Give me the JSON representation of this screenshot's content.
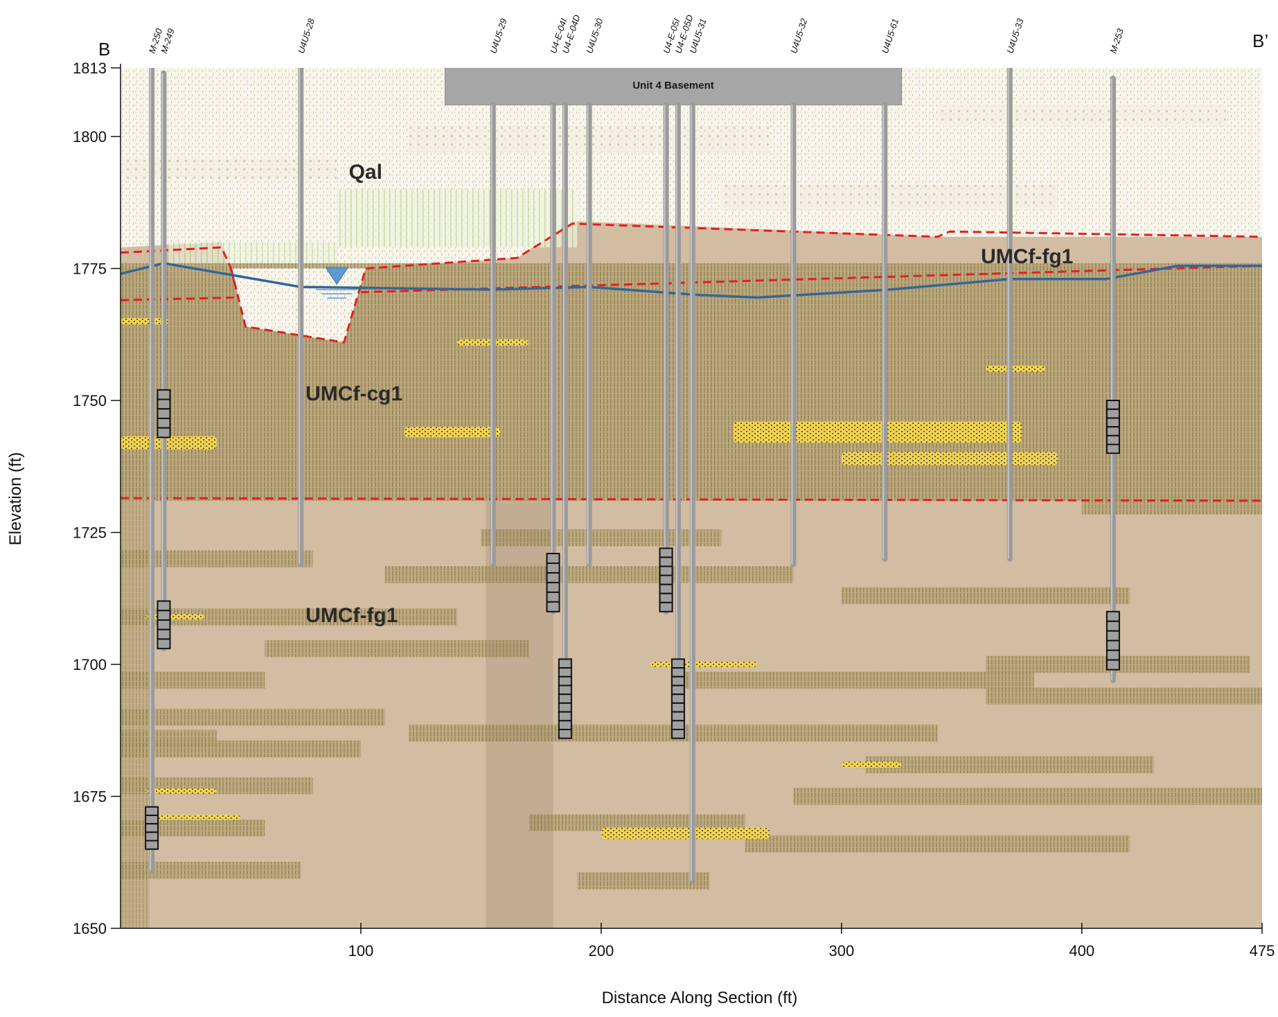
{
  "section": {
    "start_label": "B",
    "end_label": "B’"
  },
  "axes": {
    "x_title": "Distance Along Section (ft)",
    "y_title": "Elevation (ft)",
    "x_ticks": [
      {
        "value": 100,
        "label": "100"
      },
      {
        "value": 200,
        "label": "200"
      },
      {
        "value": 300,
        "label": "300"
      },
      {
        "value": 400,
        "label": "400"
      },
      {
        "value": 475,
        "label": "475"
      }
    ],
    "y_ticks": [
      {
        "value": 1813,
        "label": "1813"
      },
      {
        "value": 1800,
        "label": "1800"
      },
      {
        "value": 1775,
        "label": "1775"
      },
      {
        "value": 1750,
        "label": "1750"
      },
      {
        "value": 1725,
        "label": "1725"
      },
      {
        "value": 1700,
        "label": "1700"
      },
      {
        "value": 1675,
        "label": "1675"
      },
      {
        "value": 1650,
        "label": "1650"
      }
    ],
    "xlim": [
      0,
      475
    ],
    "ylim": [
      1650,
      1813
    ]
  },
  "structure": {
    "label": "Unit 4 Basement",
    "x_start": 135,
    "x_end": 325,
    "bottom_elevation": 1806
  },
  "units": [
    {
      "label": "Qal",
      "x": 95,
      "elev": 1792,
      "size": 30
    },
    {
      "label": "UMCf-fg1",
      "x": 358,
      "elev": 1776,
      "size": 30
    },
    {
      "label": "UMCf-cg1",
      "x": 77,
      "elev": 1750,
      "size": 30
    },
    {
      "label": "UMCf-fg1",
      "x": 77,
      "elev": 1708,
      "size": 30
    }
  ],
  "wells": [
    {
      "name": "M-250",
      "x": 13,
      "top": 1813,
      "bottom": 1661,
      "screens": [
        {
          "top": 1673,
          "bottom": 1665
        }
      ]
    },
    {
      "name": "M-249",
      "x": 18,
      "top": 1812,
      "bottom": 1703,
      "screens": [
        {
          "top": 1752,
          "bottom": 1743
        },
        {
          "top": 1712,
          "bottom": 1703
        }
      ]
    },
    {
      "name": "U4U5-28",
      "x": 75,
      "top": 1813,
      "bottom": 1719,
      "screens": []
    },
    {
      "name": "U4U5-29",
      "x": 155,
      "top": 1806,
      "bottom": 1719,
      "screens": []
    },
    {
      "name": "U4-E-04I",
      "x": 180,
      "top": 1806,
      "bottom": 1710,
      "screens": [
        {
          "top": 1721,
          "bottom": 1710
        }
      ]
    },
    {
      "name": "U4-E-04D",
      "x": 185,
      "top": 1806,
      "bottom": 1690,
      "screens": [
        {
          "top": 1701,
          "bottom": 1686
        }
      ]
    },
    {
      "name": "U4U5-30",
      "x": 195,
      "top": 1806,
      "bottom": 1719,
      "screens": []
    },
    {
      "name": "U4-E-05I",
      "x": 227,
      "top": 1806,
      "bottom": 1710,
      "screens": [
        {
          "top": 1722,
          "bottom": 1710
        }
      ]
    },
    {
      "name": "U4-E-05D",
      "x": 232,
      "top": 1806,
      "bottom": 1690,
      "screens": [
        {
          "top": 1701,
          "bottom": 1686
        }
      ]
    },
    {
      "name": "U4U5-31",
      "x": 238,
      "top": 1806,
      "bottom": 1659,
      "screens": []
    },
    {
      "name": "U4U5-32",
      "x": 280,
      "top": 1806,
      "bottom": 1719,
      "screens": []
    },
    {
      "name": "U4U5-61",
      "x": 318,
      "top": 1806,
      "bottom": 1720,
      "screens": []
    },
    {
      "name": "U4U5-33",
      "x": 370,
      "top": 1813,
      "bottom": 1720,
      "screens": []
    },
    {
      "name": "M-253",
      "x": 413,
      "top": 1811,
      "bottom": 1697,
      "screens": [
        {
          "top": 1750,
          "bottom": 1740
        },
        {
          "top": 1710,
          "bottom": 1699
        }
      ]
    }
  ],
  "water_table": [
    [
      0,
      1774
    ],
    [
      18,
      1776
    ],
    [
      75,
      1771.5
    ],
    [
      155,
      1771
    ],
    [
      195,
      1771.5
    ],
    [
      240,
      1770
    ],
    [
      265,
      1769.5
    ],
    [
      320,
      1771
    ],
    [
      370,
      1773
    ],
    [
      410,
      1773
    ],
    [
      440,
      1775.5
    ],
    [
      475,
      1775.5
    ]
  ],
  "contact_lines": [
    [
      [
        0,
        1778
      ],
      [
        42,
        1779
      ],
      [
        46,
        1775
      ],
      [
        48,
        1771
      ]
    ],
    [
      [
        0,
        1769
      ],
      [
        49,
        1769.5
      ]
    ],
    [
      [
        46,
        1775
      ],
      [
        52,
        1764
      ],
      [
        93,
        1761
      ],
      [
        102,
        1775
      ],
      [
        165,
        1777
      ],
      [
        188,
        1783.5
      ],
      [
        340,
        1781
      ],
      [
        345,
        1782
      ],
      [
        475,
        1781
      ]
    ],
    [
      [
        100,
        1770.5
      ],
      [
        475,
        1775.5
      ]
    ],
    [
      [
        0,
        1731.5
      ],
      [
        475,
        1731
      ]
    ]
  ],
  "colors": {
    "qal_fill": "#f7f5ec",
    "fg_fill": "#d2bca2",
    "cg_fill": "#a08c55",
    "yellow_lens": "#f0d451",
    "water_table": "#336699",
    "contact": "#e02020",
    "well": "#9a9a9a",
    "screen": "#a0a0a0"
  }
}
